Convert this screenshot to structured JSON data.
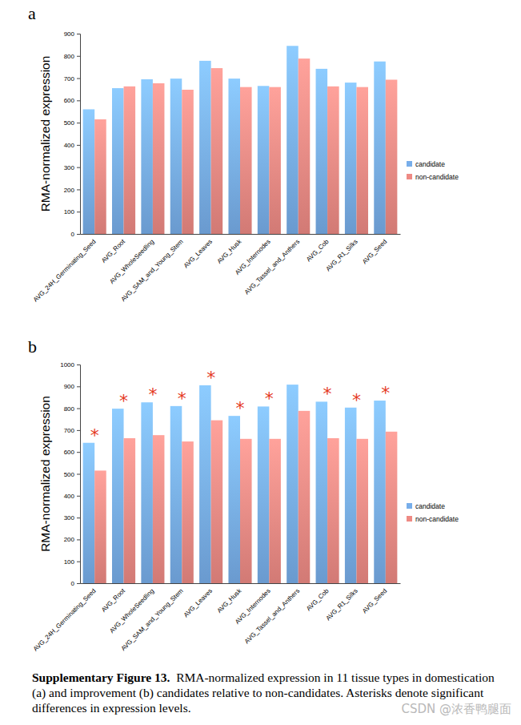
{
  "chart_data": [
    {
      "type": "bar",
      "title": "a",
      "y_label": "RMA-normalized expression",
      "categories": [
        "AVG_24H_Germinating_Seed",
        "AVG_Root",
        "AVG_WholeSeedling",
        "AVG_SAM_and_Young_Stem",
        "AVG_Leaves",
        "AVG_Husk",
        "AVG_Internodes",
        "AVG_Tassel_and_Anthers",
        "AVG_Cob",
        "AVG_R1_Silks",
        "AVG_Seed"
      ],
      "series": [
        {
          "name": "candidate",
          "color": "#78aeea",
          "values": [
            560,
            655,
            695,
            698,
            778,
            698,
            665,
            845,
            742,
            680,
            775
          ]
        },
        {
          "name": "non-candidate",
          "color": "#ee8a84",
          "values": [
            515,
            663,
            677,
            648,
            745,
            660,
            660,
            788,
            663,
            660,
            693
          ]
        }
      ],
      "ylim": [
        0,
        900
      ],
      "yticks": [
        0,
        100,
        200,
        300,
        400,
        500,
        600,
        700,
        800,
        900
      ],
      "grid": false,
      "legend": "right"
    },
    {
      "type": "bar",
      "title": "b",
      "y_label": "RMA-normalized expression",
      "categories": [
        "AVG_24H_Germinating_Seed",
        "AVG_Root",
        "AVG_WholeSeedling",
        "AVG_SAM_and_Young_Stem",
        "AVG_Leaves",
        "AVG_Husk",
        "AVG_Internodes",
        "AVG_Tassel_and_Anthers",
        "AVG_Cob",
        "AVG_R1_Silks",
        "AVG_Seed"
      ],
      "series": [
        {
          "name": "candidate",
          "color": "#78aeea",
          "values": [
            642,
            798,
            827,
            810,
            905,
            765,
            808,
            908,
            830,
            803,
            835
          ]
        },
        {
          "name": "non-candidate",
          "color": "#ee8a84",
          "values": [
            515,
            663,
            677,
            648,
            745,
            660,
            660,
            788,
            663,
            660,
            693
          ]
        }
      ],
      "ylim": [
        0,
        1000
      ],
      "yticks": [
        0,
        100,
        200,
        300,
        400,
        500,
        600,
        700,
        800,
        900,
        1000
      ],
      "grid": false,
      "legend": "right",
      "annotations": [
        {
          "category": "AVG_24H_Germinating_Seed",
          "text": "*"
        },
        {
          "category": "AVG_Root",
          "text": "*"
        },
        {
          "category": "AVG_WholeSeedling",
          "text": "*"
        },
        {
          "category": "AVG_SAM_and_Young_Stem",
          "text": "*"
        },
        {
          "category": "AVG_Leaves",
          "text": "*"
        },
        {
          "category": "AVG_Husk",
          "text": "*"
        },
        {
          "category": "AVG_Internodes",
          "text": "*"
        },
        {
          "category": "AVG_Cob",
          "text": "*"
        },
        {
          "category": "AVG_R1_Silks",
          "text": "*"
        },
        {
          "category": "AVG_Seed",
          "text": "*"
        }
      ]
    }
  ],
  "caption": {
    "label": "Supplementary Figure 13.",
    "text": "RMA-normalized expression in 11 tissue types in domestication (a) and improvement (b) candidates relative to non-candidates. Asterisks denote significant differences in expression levels."
  },
  "watermark": "CSDN @浓香鸭腿面"
}
